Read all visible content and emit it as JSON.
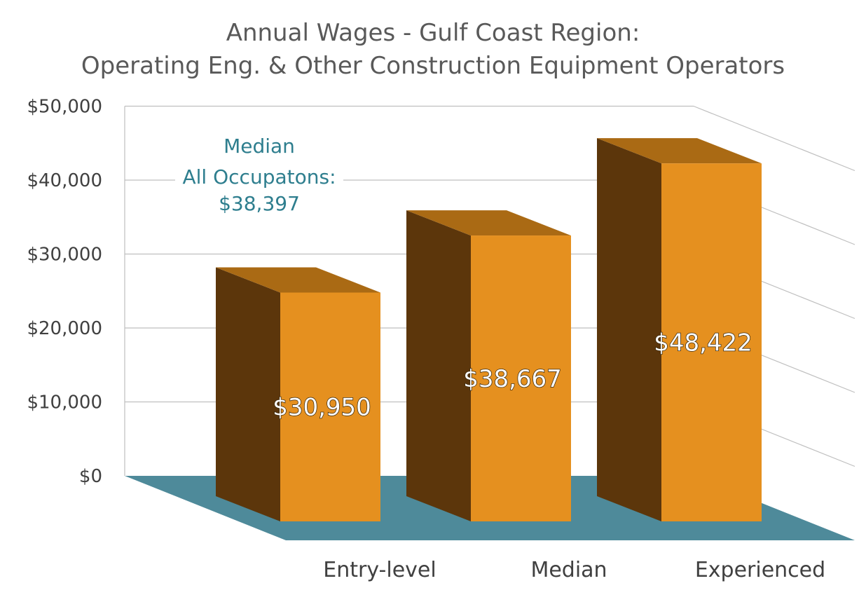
{
  "chart_data": {
    "type": "bar",
    "title": "Annual Wages - Gulf Coast Region:",
    "subtitle": "Operating Eng. & Other Construction Equipment Operators",
    "categories": [
      "Entry-level",
      "Median",
      "Experienced"
    ],
    "values": [
      30950,
      38667,
      48422
    ],
    "data_labels": [
      "$30,950",
      "$38,667",
      "$48,422"
    ],
    "yticks": [
      "$0",
      "$10,000",
      "$20,000",
      "$30,000",
      "$40,000",
      "$50,000"
    ],
    "ylim": [
      0,
      50000
    ],
    "grid": true,
    "annotation": {
      "line1": "Median",
      "line2": "All Occupatons:",
      "line3": "$38,397"
    },
    "colors": {
      "bar_front": "#E5901F",
      "bar_side": "#5C360B",
      "bar_top": "#AA6A14",
      "floor": "#4E8A9A",
      "annotation": "#2E7E8E"
    }
  }
}
